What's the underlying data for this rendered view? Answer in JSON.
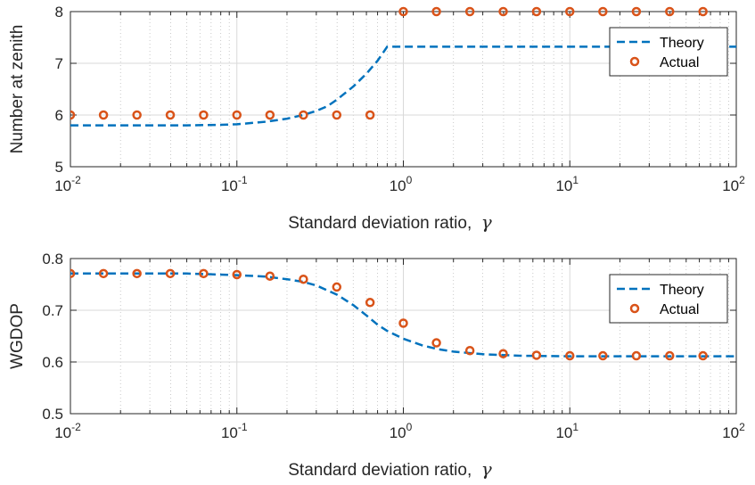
{
  "colors": {
    "theory": "#0072BD",
    "actual": "#D95319",
    "grid_major": "#d9d9d9",
    "grid_minor": "#bdbdbd",
    "axes": "#262626"
  },
  "chart_data": [
    {
      "type": "line",
      "title": "",
      "xlabel": "Standard deviation ratio,",
      "xlabel_symbol": "γ",
      "ylabel": "Number at zenith",
      "xscale": "log",
      "xlim": [
        0.01,
        100
      ],
      "ylim": [
        5,
        8
      ],
      "x_ticks": [
        "10",
        "10",
        "10",
        "10",
        "10"
      ],
      "x_tick_exponents": [
        "-2",
        "-1",
        "0",
        "1",
        "2"
      ],
      "y_ticks": [
        "5",
        "6",
        "7",
        "8"
      ],
      "grid": true,
      "legend": {
        "position": "top-right",
        "entries": [
          "Theory",
          "Actual"
        ]
      },
      "series": [
        {
          "name": "Theory",
          "style": "dashed",
          "x": [
            0.01,
            0.02,
            0.05,
            0.08,
            0.1,
            0.15,
            0.2,
            0.25,
            0.3,
            0.35,
            0.4,
            0.5,
            0.6,
            0.7,
            0.8,
            1,
            2,
            5,
            10,
            20,
            50,
            100
          ],
          "y": [
            5.8,
            5.8,
            5.8,
            5.81,
            5.82,
            5.87,
            5.93,
            6.0,
            6.08,
            6.17,
            6.3,
            6.55,
            6.8,
            7.05,
            7.32,
            7.32,
            7.32,
            7.32,
            7.32,
            7.32,
            7.32,
            7.32
          ]
        },
        {
          "name": "Actual",
          "style": "markers",
          "x": [
            0.01,
            0.0158,
            0.0251,
            0.0398,
            0.0631,
            0.1,
            0.158,
            0.251,
            0.398,
            0.631,
            1,
            1.58,
            2.51,
            3.98,
            6.31,
            10,
            15.8,
            25.1,
            39.8,
            63.1
          ],
          "y": [
            6,
            6,
            6,
            6,
            6,
            6,
            6,
            6,
            6,
            6,
            8,
            8,
            8,
            8,
            8,
            8,
            8,
            8,
            8,
            8
          ]
        }
      ]
    },
    {
      "type": "line",
      "title": "",
      "xlabel": "Standard deviation ratio,",
      "xlabel_symbol": "γ",
      "ylabel": "WGDOP",
      "xscale": "log",
      "xlim": [
        0.01,
        100
      ],
      "ylim": [
        0.5,
        0.8
      ],
      "x_ticks": [
        "10",
        "10",
        "10",
        "10",
        "10"
      ],
      "x_tick_exponents": [
        "-2",
        "-1",
        "0",
        "1",
        "2"
      ],
      "y_ticks": [
        "0.5",
        "0.6",
        "0.7",
        "0.8"
      ],
      "grid": true,
      "legend": {
        "position": "top-right",
        "entries": [
          "Theory",
          "Actual"
        ]
      },
      "series": [
        {
          "name": "Theory",
          "style": "dashed",
          "x": [
            0.01,
            0.02,
            0.05,
            0.1,
            0.15,
            0.2,
            0.25,
            0.3,
            0.4,
            0.5,
            0.6,
            0.7,
            0.8,
            1,
            1.3,
            1.6,
            2,
            3,
            5,
            10,
            20,
            50,
            100
          ],
          "y": [
            0.771,
            0.771,
            0.771,
            0.768,
            0.765,
            0.76,
            0.755,
            0.748,
            0.73,
            0.71,
            0.69,
            0.672,
            0.66,
            0.645,
            0.632,
            0.625,
            0.62,
            0.615,
            0.612,
            0.611,
            0.611,
            0.611,
            0.611
          ]
        },
        {
          "name": "Actual",
          "style": "markers",
          "x": [
            0.01,
            0.0158,
            0.0251,
            0.0398,
            0.0631,
            0.1,
            0.158,
            0.251,
            0.398,
            0.631,
            1,
            1.58,
            2.51,
            3.98,
            6.31,
            10,
            15.8,
            25.1,
            39.8,
            63.1
          ],
          "y": [
            0.771,
            0.771,
            0.771,
            0.771,
            0.771,
            0.769,
            0.766,
            0.76,
            0.745,
            0.715,
            0.675,
            0.637,
            0.622,
            0.616,
            0.613,
            0.612,
            0.612,
            0.612,
            0.612,
            0.612
          ]
        }
      ]
    }
  ]
}
